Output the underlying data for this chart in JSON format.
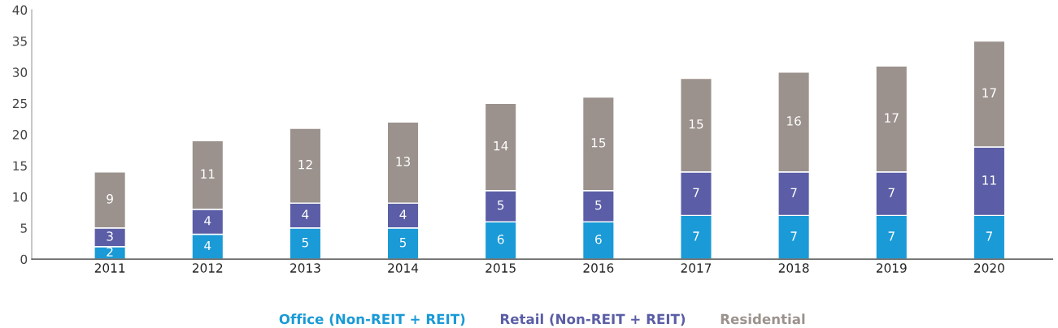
{
  "chart_data": {
    "type": "bar",
    "stacked": true,
    "data_labels": true,
    "legend": "bottom",
    "grid": false,
    "categories": [
      "2011",
      "2012",
      "2013",
      "2014",
      "2015",
      "2016",
      "2017",
      "2018",
      "2019",
      "2020"
    ],
    "series": [
      {
        "name": "Office (Non-REIT + REIT)",
        "color": "#1a9ad6",
        "values": [
          2,
          4,
          5,
          5,
          6,
          6,
          7,
          7,
          7,
          7
        ]
      },
      {
        "name": "Retail (Non-REIT + REIT)",
        "color": "#5b5ea6",
        "values": [
          3,
          4,
          4,
          4,
          5,
          5,
          7,
          7,
          7,
          11
        ]
      },
      {
        "name": "Residential",
        "color": "#9b928d",
        "values": [
          9,
          11,
          12,
          13,
          14,
          15,
          15,
          16,
          17,
          17
        ]
      }
    ],
    "ylim": [
      0,
      40
    ],
    "yticks": [
      0,
      5,
      10,
      15,
      20,
      25,
      30,
      35,
      40
    ]
  }
}
